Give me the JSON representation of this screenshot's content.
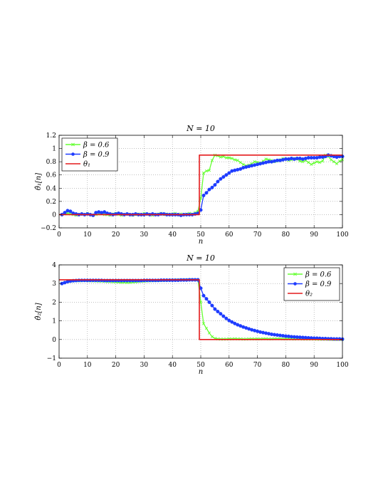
{
  "chart_data": [
    {
      "type": "line",
      "title": "N = 10",
      "xlabel": "n",
      "ylabel": "θ̂₁[n]",
      "xlim": [
        0,
        100
      ],
      "ylim": [
        -0.2,
        1.2
      ],
      "xticks": [
        0,
        10,
        20,
        30,
        40,
        50,
        60,
        70,
        80,
        90,
        100
      ],
      "yticks": [
        -0.2,
        0,
        0.2,
        0.4,
        0.6,
        0.8,
        1,
        1.2
      ],
      "ytick_labels": [
        "−0.2",
        "0",
        "0.2",
        "0.4",
        "0.6",
        "0.8",
        "1",
        "1.2"
      ],
      "grid": true,
      "legend_position": "top-left",
      "series": [
        {
          "name": "β = 0.6",
          "color": "#66ff33",
          "marker": "x",
          "x": [
            1,
            2,
            3,
            4,
            5,
            6,
            7,
            8,
            9,
            10,
            11,
            12,
            13,
            14,
            15,
            16,
            17,
            18,
            19,
            20,
            21,
            22,
            23,
            24,
            25,
            26,
            27,
            28,
            29,
            30,
            31,
            32,
            33,
            34,
            35,
            36,
            37,
            38,
            39,
            40,
            41,
            42,
            43,
            44,
            45,
            46,
            47,
            48,
            49,
            50,
            51,
            52,
            53,
            54,
            55,
            56,
            57,
            58,
            59,
            60,
            61,
            62,
            63,
            64,
            65,
            66,
            67,
            68,
            69,
            70,
            71,
            72,
            73,
            74,
            75,
            76,
            77,
            78,
            79,
            80,
            81,
            82,
            83,
            84,
            85,
            86,
            87,
            88,
            89,
            90,
            91,
            92,
            93,
            94,
            95,
            96,
            97,
            98,
            99,
            100
          ],
          "y": [
            0.0,
            0.01,
            0.02,
            0.01,
            0.0,
            -0.01,
            0.0,
            0.01,
            0.0,
            0.02,
            0.0,
            -0.01,
            0.0,
            0.01,
            0.02,
            0.0,
            0.0,
            -0.01,
            0.01,
            0.02,
            0.0,
            -0.01,
            0.0,
            0.01,
            0.0,
            -0.01,
            0.0,
            0.01,
            0.0,
            0.02,
            0.01,
            0.0,
            -0.01,
            0.0,
            0.01,
            0.02,
            0.0,
            0.01,
            0.0,
            0.01,
            0.02,
            0.0,
            0.01,
            0.0,
            0.01,
            0.02,
            0.01,
            0.03,
            0.05,
            0.25,
            0.63,
            0.66,
            0.67,
            0.82,
            0.9,
            0.89,
            0.87,
            0.88,
            0.86,
            0.86,
            0.85,
            0.83,
            0.82,
            0.79,
            0.76,
            0.74,
            0.75,
            0.77,
            0.8,
            0.79,
            0.78,
            0.81,
            0.84,
            0.83,
            0.82,
            0.8,
            0.81,
            0.83,
            0.85,
            0.84,
            0.82,
            0.83,
            0.85,
            0.84,
            0.81,
            0.8,
            0.82,
            0.79,
            0.76,
            0.78,
            0.8,
            0.79,
            0.81,
            0.9,
            0.88,
            0.83,
            0.8,
            0.77,
            0.81,
            0.83
          ]
        },
        {
          "name": "β = 0.9",
          "color": "#1e3cff",
          "marker": "o",
          "x": [
            1,
            2,
            3,
            4,
            5,
            6,
            7,
            8,
            9,
            10,
            11,
            12,
            13,
            14,
            15,
            16,
            17,
            18,
            19,
            20,
            21,
            22,
            23,
            24,
            25,
            26,
            27,
            28,
            29,
            30,
            31,
            32,
            33,
            34,
            35,
            36,
            37,
            38,
            39,
            40,
            41,
            42,
            43,
            44,
            45,
            46,
            47,
            48,
            49,
            50,
            51,
            52,
            53,
            54,
            55,
            56,
            57,
            58,
            59,
            60,
            61,
            62,
            63,
            64,
            65,
            66,
            67,
            68,
            69,
            70,
            71,
            72,
            73,
            74,
            75,
            76,
            77,
            78,
            79,
            80,
            81,
            82,
            83,
            84,
            85,
            86,
            87,
            88,
            89,
            90,
            91,
            92,
            93,
            94,
            95,
            96,
            97,
            98,
            99,
            100
          ],
          "y": [
            0.0,
            0.03,
            0.06,
            0.05,
            0.02,
            0.01,
            0.0,
            0.01,
            0.0,
            0.01,
            0.0,
            -0.01,
            0.03,
            0.04,
            0.03,
            0.04,
            0.02,
            0.01,
            0.0,
            0.01,
            0.02,
            0.01,
            0.0,
            0.01,
            0.0,
            0.0,
            0.01,
            0.0,
            0.0,
            0.0,
            0.01,
            0.0,
            0.01,
            0.0,
            0.0,
            0.01,
            0.01,
            0.0,
            0.0,
            0.0,
            0.0,
            0.0,
            -0.01,
            0.0,
            0.0,
            0.0,
            0.0,
            0.01,
            0.02,
            0.07,
            0.29,
            0.33,
            0.38,
            0.41,
            0.45,
            0.5,
            0.54,
            0.57,
            0.6,
            0.63,
            0.66,
            0.67,
            0.68,
            0.69,
            0.71,
            0.72,
            0.73,
            0.74,
            0.75,
            0.76,
            0.77,
            0.78,
            0.79,
            0.8,
            0.8,
            0.81,
            0.82,
            0.82,
            0.83,
            0.84,
            0.84,
            0.85,
            0.84,
            0.85,
            0.85,
            0.84,
            0.85,
            0.86,
            0.86,
            0.86,
            0.86,
            0.87,
            0.87,
            0.88,
            0.9,
            0.89,
            0.88,
            0.87,
            0.88,
            0.88
          ]
        },
        {
          "name": "θ₁",
          "color": "#e41a1c",
          "marker": "none",
          "x": [
            0,
            49.5,
            49.5,
            100
          ],
          "y": [
            0,
            0,
            0.9,
            0.9
          ]
        }
      ]
    },
    {
      "type": "line",
      "title": "N = 10",
      "xlabel": "n",
      "ylabel": "θ̂₂[n]",
      "xlim": [
        0,
        100
      ],
      "ylim": [
        -1,
        4
      ],
      "xticks": [
        0,
        10,
        20,
        30,
        40,
        50,
        60,
        70,
        80,
        90,
        100
      ],
      "yticks": [
        -1,
        0,
        1,
        2,
        3,
        4
      ],
      "ytick_labels": [
        "−1",
        "0",
        "1",
        "2",
        "3",
        "4"
      ],
      "grid": true,
      "legend_position": "top-right",
      "series": [
        {
          "name": "β = 0.6",
          "color": "#66ff33",
          "marker": "x",
          "x": [
            1,
            2,
            3,
            4,
            5,
            6,
            7,
            8,
            9,
            10,
            11,
            12,
            13,
            14,
            15,
            16,
            17,
            18,
            19,
            20,
            21,
            22,
            23,
            24,
            25,
            26,
            27,
            28,
            29,
            30,
            31,
            32,
            33,
            34,
            35,
            36,
            37,
            38,
            39,
            40,
            41,
            42,
            43,
            44,
            45,
            46,
            47,
            48,
            49,
            50,
            51,
            52,
            53,
            54,
            55,
            56,
            57,
            58,
            59,
            60,
            61,
            62,
            63,
            64,
            65,
            66,
            67,
            68,
            69,
            70,
            71,
            72,
            73,
            74,
            75,
            76,
            77,
            78,
            79,
            80,
            81,
            82,
            83,
            84,
            85,
            86,
            87,
            88,
            89,
            90,
            91,
            92,
            93,
            94,
            95,
            96,
            97,
            98,
            99,
            100
          ],
          "y": [
            3.0,
            3.05,
            3.1,
            3.12,
            3.14,
            3.15,
            3.14,
            3.15,
            3.16,
            3.15,
            3.14,
            3.14,
            3.13,
            3.12,
            3.12,
            3.11,
            3.1,
            3.1,
            3.09,
            3.08,
            3.07,
            3.06,
            3.06,
            3.05,
            3.06,
            3.07,
            3.08,
            3.1,
            3.11,
            3.12,
            3.13,
            3.14,
            3.15,
            3.15,
            3.16,
            3.16,
            3.17,
            3.17,
            3.18,
            3.18,
            3.19,
            3.19,
            3.2,
            3.2,
            3.2,
            3.21,
            3.21,
            3.2,
            3.2,
            2.0,
            0.85,
            0.6,
            0.35,
            0.15,
            0.06,
            0.03,
            0.02,
            0.02,
            0.02,
            0.03,
            0.03,
            0.04,
            0.03,
            0.03,
            0.02,
            0.02,
            0.03,
            0.03,
            0.03,
            0.03,
            0.03,
            0.04,
            0.04,
            0.03,
            0.03,
            0.04,
            0.04,
            0.04,
            0.03,
            0.03,
            0.03,
            0.03,
            0.02,
            0.03,
            0.03,
            0.02,
            0.02,
            0.02,
            0.02,
            0.02,
            0.01,
            0.01,
            0.01,
            0.01,
            0.01,
            0.0,
            0.0,
            0.0,
            0.0,
            0.0
          ]
        },
        {
          "name": "β = 0.9",
          "color": "#1e3cff",
          "marker": "o",
          "x": [
            1,
            2,
            3,
            4,
            5,
            6,
            7,
            8,
            9,
            10,
            11,
            12,
            13,
            14,
            15,
            16,
            17,
            18,
            19,
            20,
            21,
            22,
            23,
            24,
            25,
            26,
            27,
            28,
            29,
            30,
            31,
            32,
            33,
            34,
            35,
            36,
            37,
            38,
            39,
            40,
            41,
            42,
            43,
            44,
            45,
            46,
            47,
            48,
            49,
            50,
            51,
            52,
            53,
            54,
            55,
            56,
            57,
            58,
            59,
            60,
            61,
            62,
            63,
            64,
            65,
            66,
            67,
            68,
            69,
            70,
            71,
            72,
            73,
            74,
            75,
            76,
            77,
            78,
            79,
            80,
            81,
            82,
            83,
            84,
            85,
            86,
            87,
            88,
            89,
            90,
            91,
            92,
            93,
            94,
            95,
            96,
            97,
            98,
            99,
            100
          ],
          "y": [
            3.0,
            3.05,
            3.1,
            3.13,
            3.15,
            3.16,
            3.17,
            3.17,
            3.17,
            3.17,
            3.17,
            3.17,
            3.17,
            3.17,
            3.17,
            3.16,
            3.16,
            3.16,
            3.16,
            3.16,
            3.16,
            3.16,
            3.16,
            3.16,
            3.16,
            3.16,
            3.16,
            3.16,
            3.16,
            3.17,
            3.17,
            3.17,
            3.17,
            3.17,
            3.17,
            3.18,
            3.18,
            3.18,
            3.18,
            3.18,
            3.18,
            3.18,
            3.19,
            3.19,
            3.19,
            3.2,
            3.2,
            3.2,
            3.2,
            2.75,
            2.35,
            2.18,
            2.0,
            1.82,
            1.63,
            1.5,
            1.38,
            1.25,
            1.13,
            1.02,
            0.94,
            0.86,
            0.79,
            0.73,
            0.67,
            0.62,
            0.57,
            0.52,
            0.48,
            0.44,
            0.4,
            0.37,
            0.34,
            0.31,
            0.28,
            0.26,
            0.24,
            0.22,
            0.2,
            0.18,
            0.17,
            0.15,
            0.14,
            0.13,
            0.12,
            0.11,
            0.1,
            0.09,
            0.08,
            0.07,
            0.07,
            0.06,
            0.05,
            0.05,
            0.04,
            0.04,
            0.03,
            0.03,
            0.03,
            0.02
          ]
        },
        {
          "name": "θ₂",
          "color": "#e41a1c",
          "marker": "none",
          "x": [
            0,
            49.5,
            49.5,
            100
          ],
          "y": [
            3.2,
            3.2,
            0,
            0
          ]
        }
      ]
    }
  ]
}
